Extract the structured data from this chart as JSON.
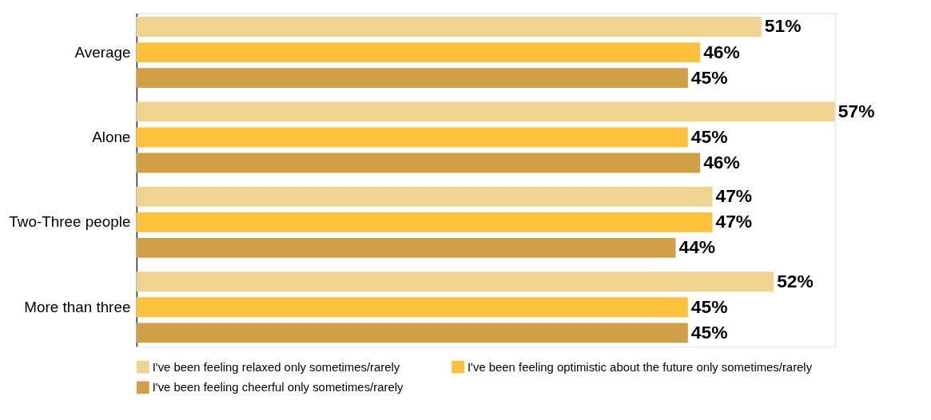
{
  "chart_data": {
    "type": "bar",
    "orientation": "horizontal",
    "categories": [
      "Average",
      "Alone",
      "Two-Three people",
      "More than three"
    ],
    "series": [
      {
        "name": "I've been feeling relaxed only sometimes/rarely",
        "color": "#f0d38f",
        "values": [
          51,
          57,
          47,
          52
        ],
        "value_labels": [
          "51%",
          "57%",
          "47%",
          "52%"
        ]
      },
      {
        "name": "I've been feeling optimistic about the future only sometimes/rarely",
        "color": "#fdc13b",
        "values": [
          46,
          45,
          47,
          45
        ],
        "value_labels": [
          "46%",
          "45%",
          "47%",
          "45%"
        ]
      },
      {
        "name": "I've been feeling cheerful only sometimes/rarely",
        "color": "#d09f46",
        "values": [
          45,
          46,
          44,
          45
        ],
        "value_labels": [
          "45%",
          "46%",
          "44%",
          "45%"
        ]
      }
    ],
    "legend": "bottom",
    "grid": false
  }
}
